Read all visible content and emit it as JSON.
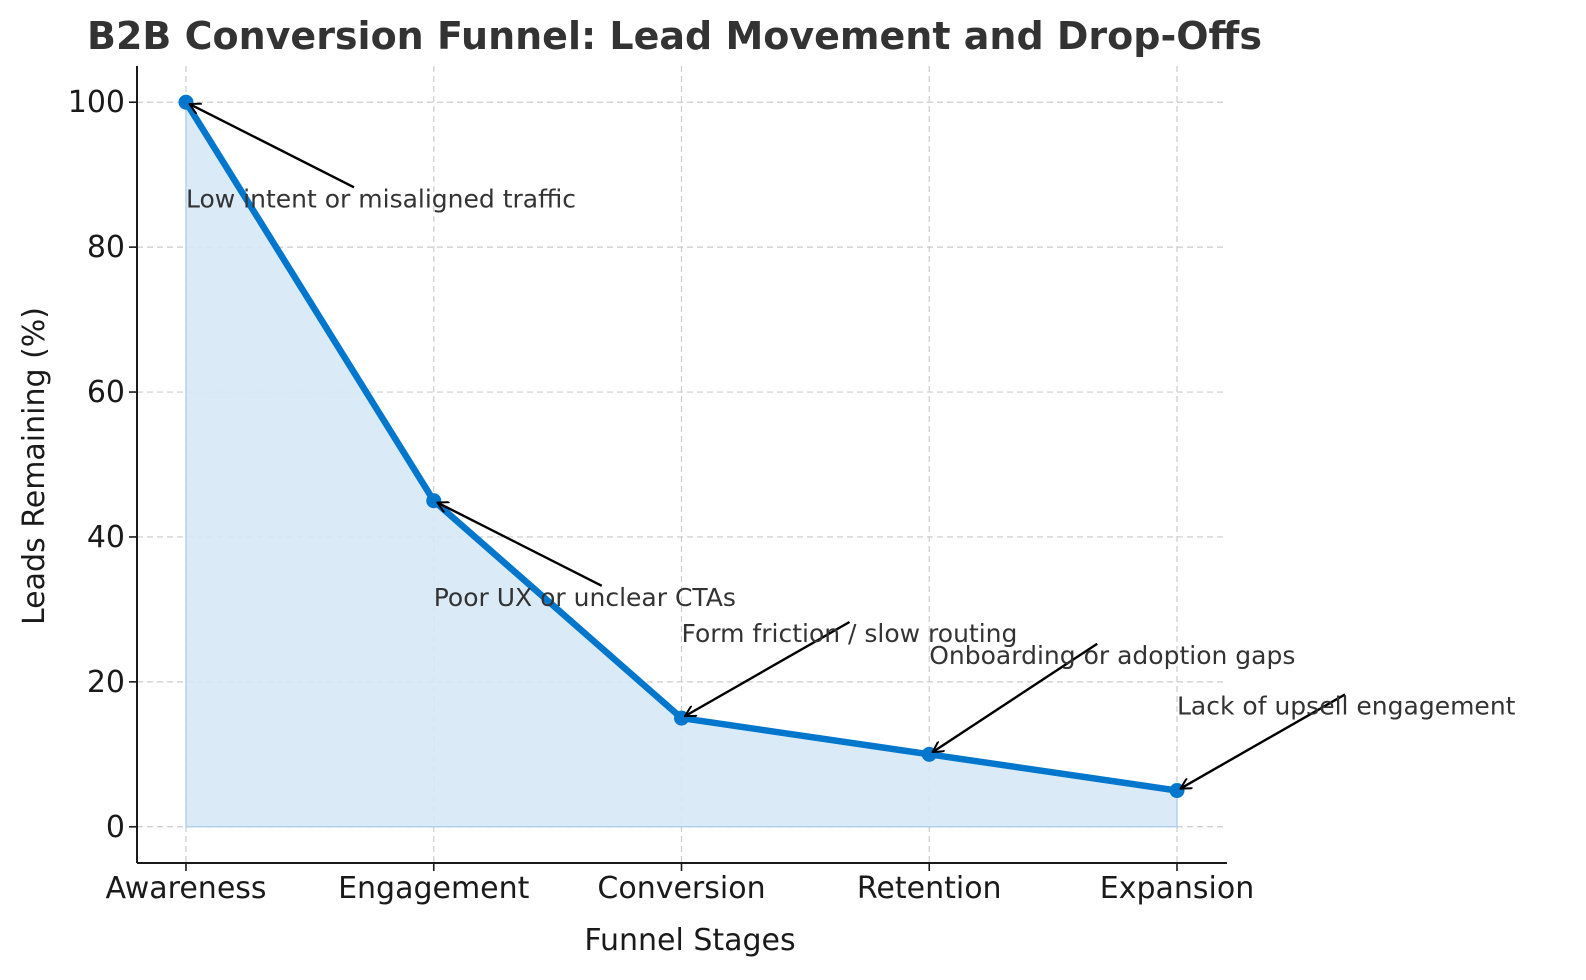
{
  "chart_data": {
    "type": "area",
    "title": "B2B Conversion Funnel: Lead Movement and Drop-Offs",
    "xlabel": "Funnel Stages",
    "ylabel": "Leads Remaining (%)",
    "categories": [
      "Awareness",
      "Engagement",
      "Conversion",
      "Retention",
      "Expansion"
    ],
    "series": [
      {
        "name": "Leads Remaining (%)",
        "values": [
          100,
          45,
          15,
          10,
          5
        ]
      }
    ],
    "ylim": [
      -5,
      105
    ],
    "yticks": [
      0,
      20,
      40,
      60,
      80,
      100
    ],
    "grid": true,
    "annotations": [
      {
        "text": "Low intent or misaligned traffic",
        "category": "Awareness",
        "target_value": 100,
        "text_value": 85.5
      },
      {
        "text": "Poor UX or unclear CTAs",
        "category": "Engagement",
        "target_value": 45,
        "text_value": 30.5
      },
      {
        "text": "Form friction / slow routing",
        "category": "Conversion",
        "target_value": 15,
        "text_value": 25.5
      },
      {
        "text": "Onboarding or adoption gaps",
        "category": "Retention",
        "target_value": 10,
        "text_value": 22.5
      },
      {
        "text": "Lack of upsell engagement",
        "category": "Expansion",
        "target_value": 5,
        "text_value": 15.5
      }
    ]
  },
  "colors": {
    "line": "#0077cc",
    "fill": "#d6e8f5",
    "text": "#333333"
  }
}
